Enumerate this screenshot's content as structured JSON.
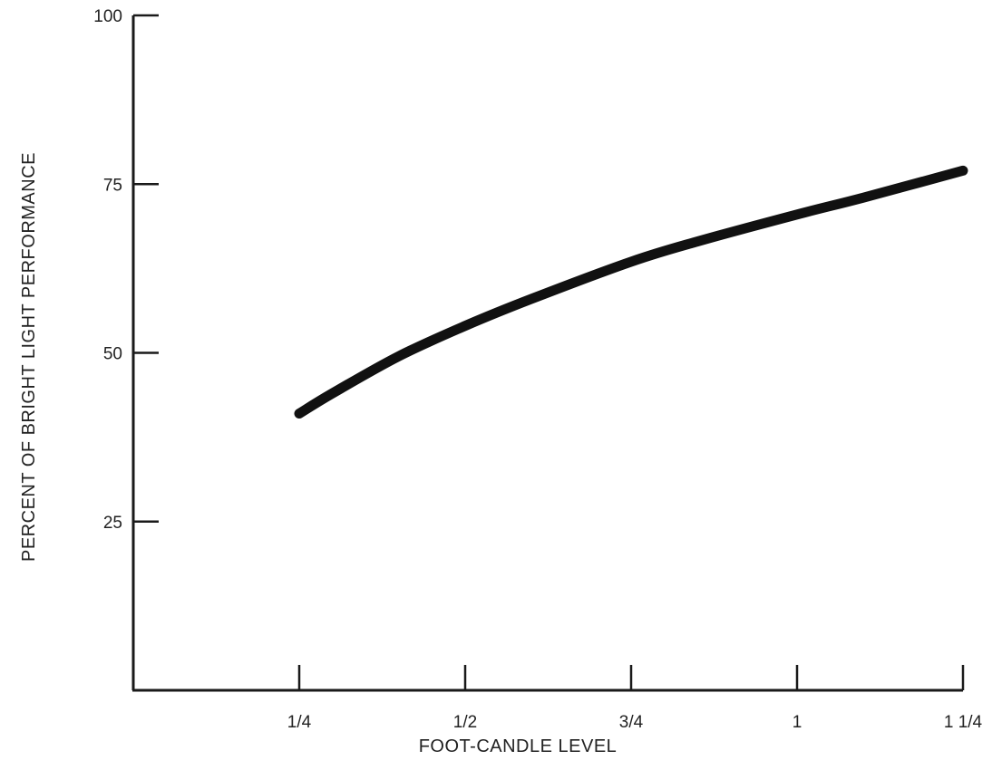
{
  "chart_data": {
    "type": "line",
    "title": "",
    "xlabel": "FOOT-CANDLE LEVEL",
    "ylabel": "PERCENT OF BRIGHT LIGHT PERFORMANCE",
    "x_ticks": [
      {
        "value": 0.25,
        "label": "1/4"
      },
      {
        "value": 0.5,
        "label": "1/2"
      },
      {
        "value": 0.75,
        "label": "3/4"
      },
      {
        "value": 1.0,
        "label": "1"
      },
      {
        "value": 1.25,
        "label": "1 1/4"
      }
    ],
    "y_ticks": [
      {
        "value": 25,
        "label": "25"
      },
      {
        "value": 50,
        "label": "50"
      },
      {
        "value": 75,
        "label": "75"
      },
      {
        "value": 100,
        "label": "100"
      }
    ],
    "xlim": [
      0,
      1.25
    ],
    "ylim": [
      0,
      100
    ],
    "grid": false,
    "series": [
      {
        "line_color": "#111111",
        "x": [
          0.25,
          0.3,
          0.4,
          0.5,
          0.6,
          0.75,
          0.85,
          1.0,
          1.1,
          1.25
        ],
        "y": [
          41,
          44,
          49.5,
          54,
          58,
          63.5,
          66.5,
          70.5,
          73,
          77
        ]
      }
    ]
  }
}
